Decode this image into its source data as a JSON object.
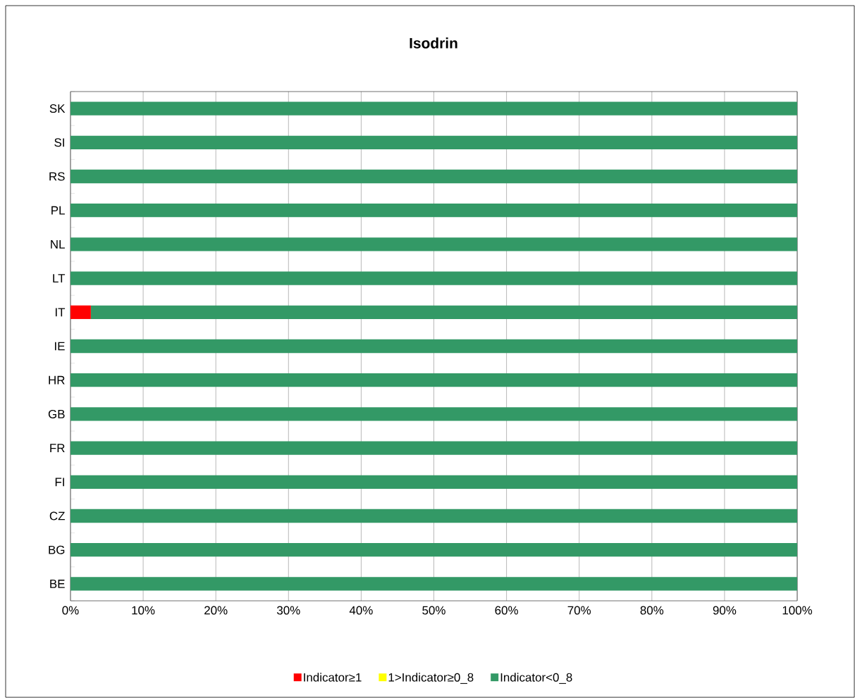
{
  "chart_data": {
    "type": "bar",
    "title": "Isodrin",
    "orientation": "horizontal",
    "stacked": true,
    "categories": [
      "SK",
      "SI",
      "RS",
      "PL",
      "NL",
      "LT",
      "IT",
      "IE",
      "HR",
      "GB",
      "FR",
      "FI",
      "CZ",
      "BG",
      "BE"
    ],
    "series": [
      {
        "name": "Indicator≥1",
        "color": "#ff0000",
        "values": [
          0,
          0,
          0,
          0,
          0,
          0,
          2.8,
          0,
          0,
          0,
          0,
          0,
          0,
          0,
          0
        ]
      },
      {
        "name": "1>Indicator≥0_8",
        "color": "#ffff00",
        "values": [
          0,
          0,
          0,
          0,
          0,
          0,
          0,
          0,
          0,
          0,
          0,
          0,
          0,
          0,
          0
        ]
      },
      {
        "name": "Indicator<0_8",
        "color": "#339966",
        "values": [
          100,
          100,
          100,
          100,
          100,
          100,
          97.2,
          100,
          100,
          100,
          100,
          100,
          100,
          100,
          100
        ]
      }
    ],
    "xlim": [
      0,
      100
    ],
    "xticks": [
      {
        "value": 0,
        "label": "0%"
      },
      {
        "value": 10,
        "label": "10%"
      },
      {
        "value": 20,
        "label": "20%"
      },
      {
        "value": 30,
        "label": "30%"
      },
      {
        "value": 40,
        "label": "40%"
      },
      {
        "value": 50,
        "label": "50%"
      },
      {
        "value": 60,
        "label": "60%"
      },
      {
        "value": 70,
        "label": "70%"
      },
      {
        "value": 80,
        "label": "80%"
      },
      {
        "value": 90,
        "label": "90%"
      },
      {
        "value": 100,
        "label": "100%"
      }
    ],
    "grid": "x",
    "legend": "bottom"
  }
}
